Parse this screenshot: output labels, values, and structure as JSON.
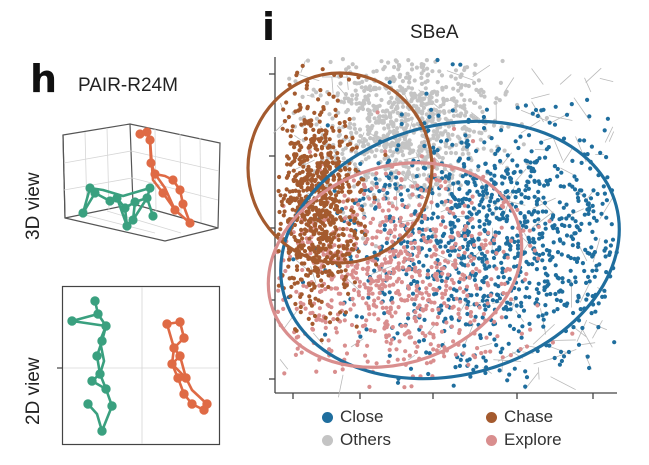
{
  "panel_h": {
    "letter": "h",
    "title": "PAIR-R24M",
    "view3d_label": "3D view",
    "view2d_label": "2D view"
  },
  "panel_i": {
    "letter": "i",
    "title": "SBeA"
  },
  "colors": {
    "close": "#1f6e9e",
    "chase": "#a45a2e",
    "others": "#c4c4c4",
    "explore": "#d98e8e",
    "mouse_green": "#3aa07f",
    "mouse_orange": "#df6a45"
  },
  "chart_data": {
    "type": "scatter",
    "title": "SBeA",
    "xlabel": "",
    "ylabel": "",
    "grid": false,
    "legend_position": "bottom",
    "series": [
      {
        "name": "Close",
        "color": "#1f6e9e"
      },
      {
        "name": "Chase",
        "color": "#a45a2e"
      },
      {
        "name": "Others",
        "color": "#c4c4c4"
      },
      {
        "name": "Explore",
        "color": "#d98e8e"
      }
    ]
  },
  "legend": [
    {
      "label": "Close",
      "color": "#1f6e9e"
    },
    {
      "label": "Chase",
      "color": "#a45a2e"
    },
    {
      "label": "Others",
      "color": "#c4c4c4"
    },
    {
      "label": "Explore",
      "color": "#d98e8e"
    }
  ]
}
